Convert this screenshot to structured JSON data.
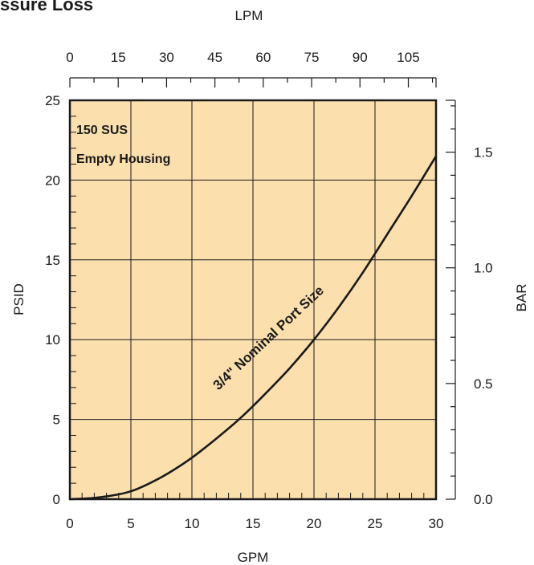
{
  "chart_data": {
    "type": "line",
    "title": "ssure Loss",
    "xlabel": "GPM",
    "ylabel": "PSID",
    "top_axis_label": "LPM",
    "right_axis_label": "BAR",
    "xlim": [
      0,
      30
    ],
    "ylim": [
      0,
      25
    ],
    "top_xlim": [
      0,
      113.6
    ],
    "right_ylim": [
      0,
      1.724
    ],
    "x_ticks": [
      "0",
      "5",
      "10",
      "15",
      "20",
      "25",
      "30"
    ],
    "x_tick_values": [
      0,
      5,
      10,
      15,
      20,
      25,
      30
    ],
    "y_ticks": [
      "0",
      "5",
      "10",
      "15",
      "20",
      "25"
    ],
    "y_tick_values": [
      0,
      5,
      10,
      15,
      20,
      25
    ],
    "top_ticks": [
      "0",
      "15",
      "30",
      "45",
      "60",
      "75",
      "90",
      "105"
    ],
    "top_tick_values": [
      0,
      15,
      30,
      45,
      60,
      75,
      90,
      105
    ],
    "right_ticks": [
      "0.0",
      "0.5",
      "1.0",
      "1.5"
    ],
    "right_tick_values": [
      0,
      0.5,
      1.0,
      1.5
    ],
    "grid": true,
    "annotations": [
      "150 SUS",
      "Empty Housing"
    ],
    "series": [
      {
        "name": "3/4\" Nominal Port Size",
        "x": [
          0,
          2,
          4,
          5,
          6,
          8,
          10,
          12,
          14,
          16,
          18,
          20,
          22,
          24,
          26,
          28,
          30
        ],
        "y": [
          0,
          0.08,
          0.3,
          0.5,
          0.8,
          1.6,
          2.6,
          3.8,
          5.1,
          6.6,
          8.2,
          10.0,
          12.0,
          14.2,
          16.6,
          19.0,
          21.5
        ]
      }
    ],
    "colors": {
      "plot_background": "#fbdfad",
      "line": "#1a1a1a"
    }
  }
}
